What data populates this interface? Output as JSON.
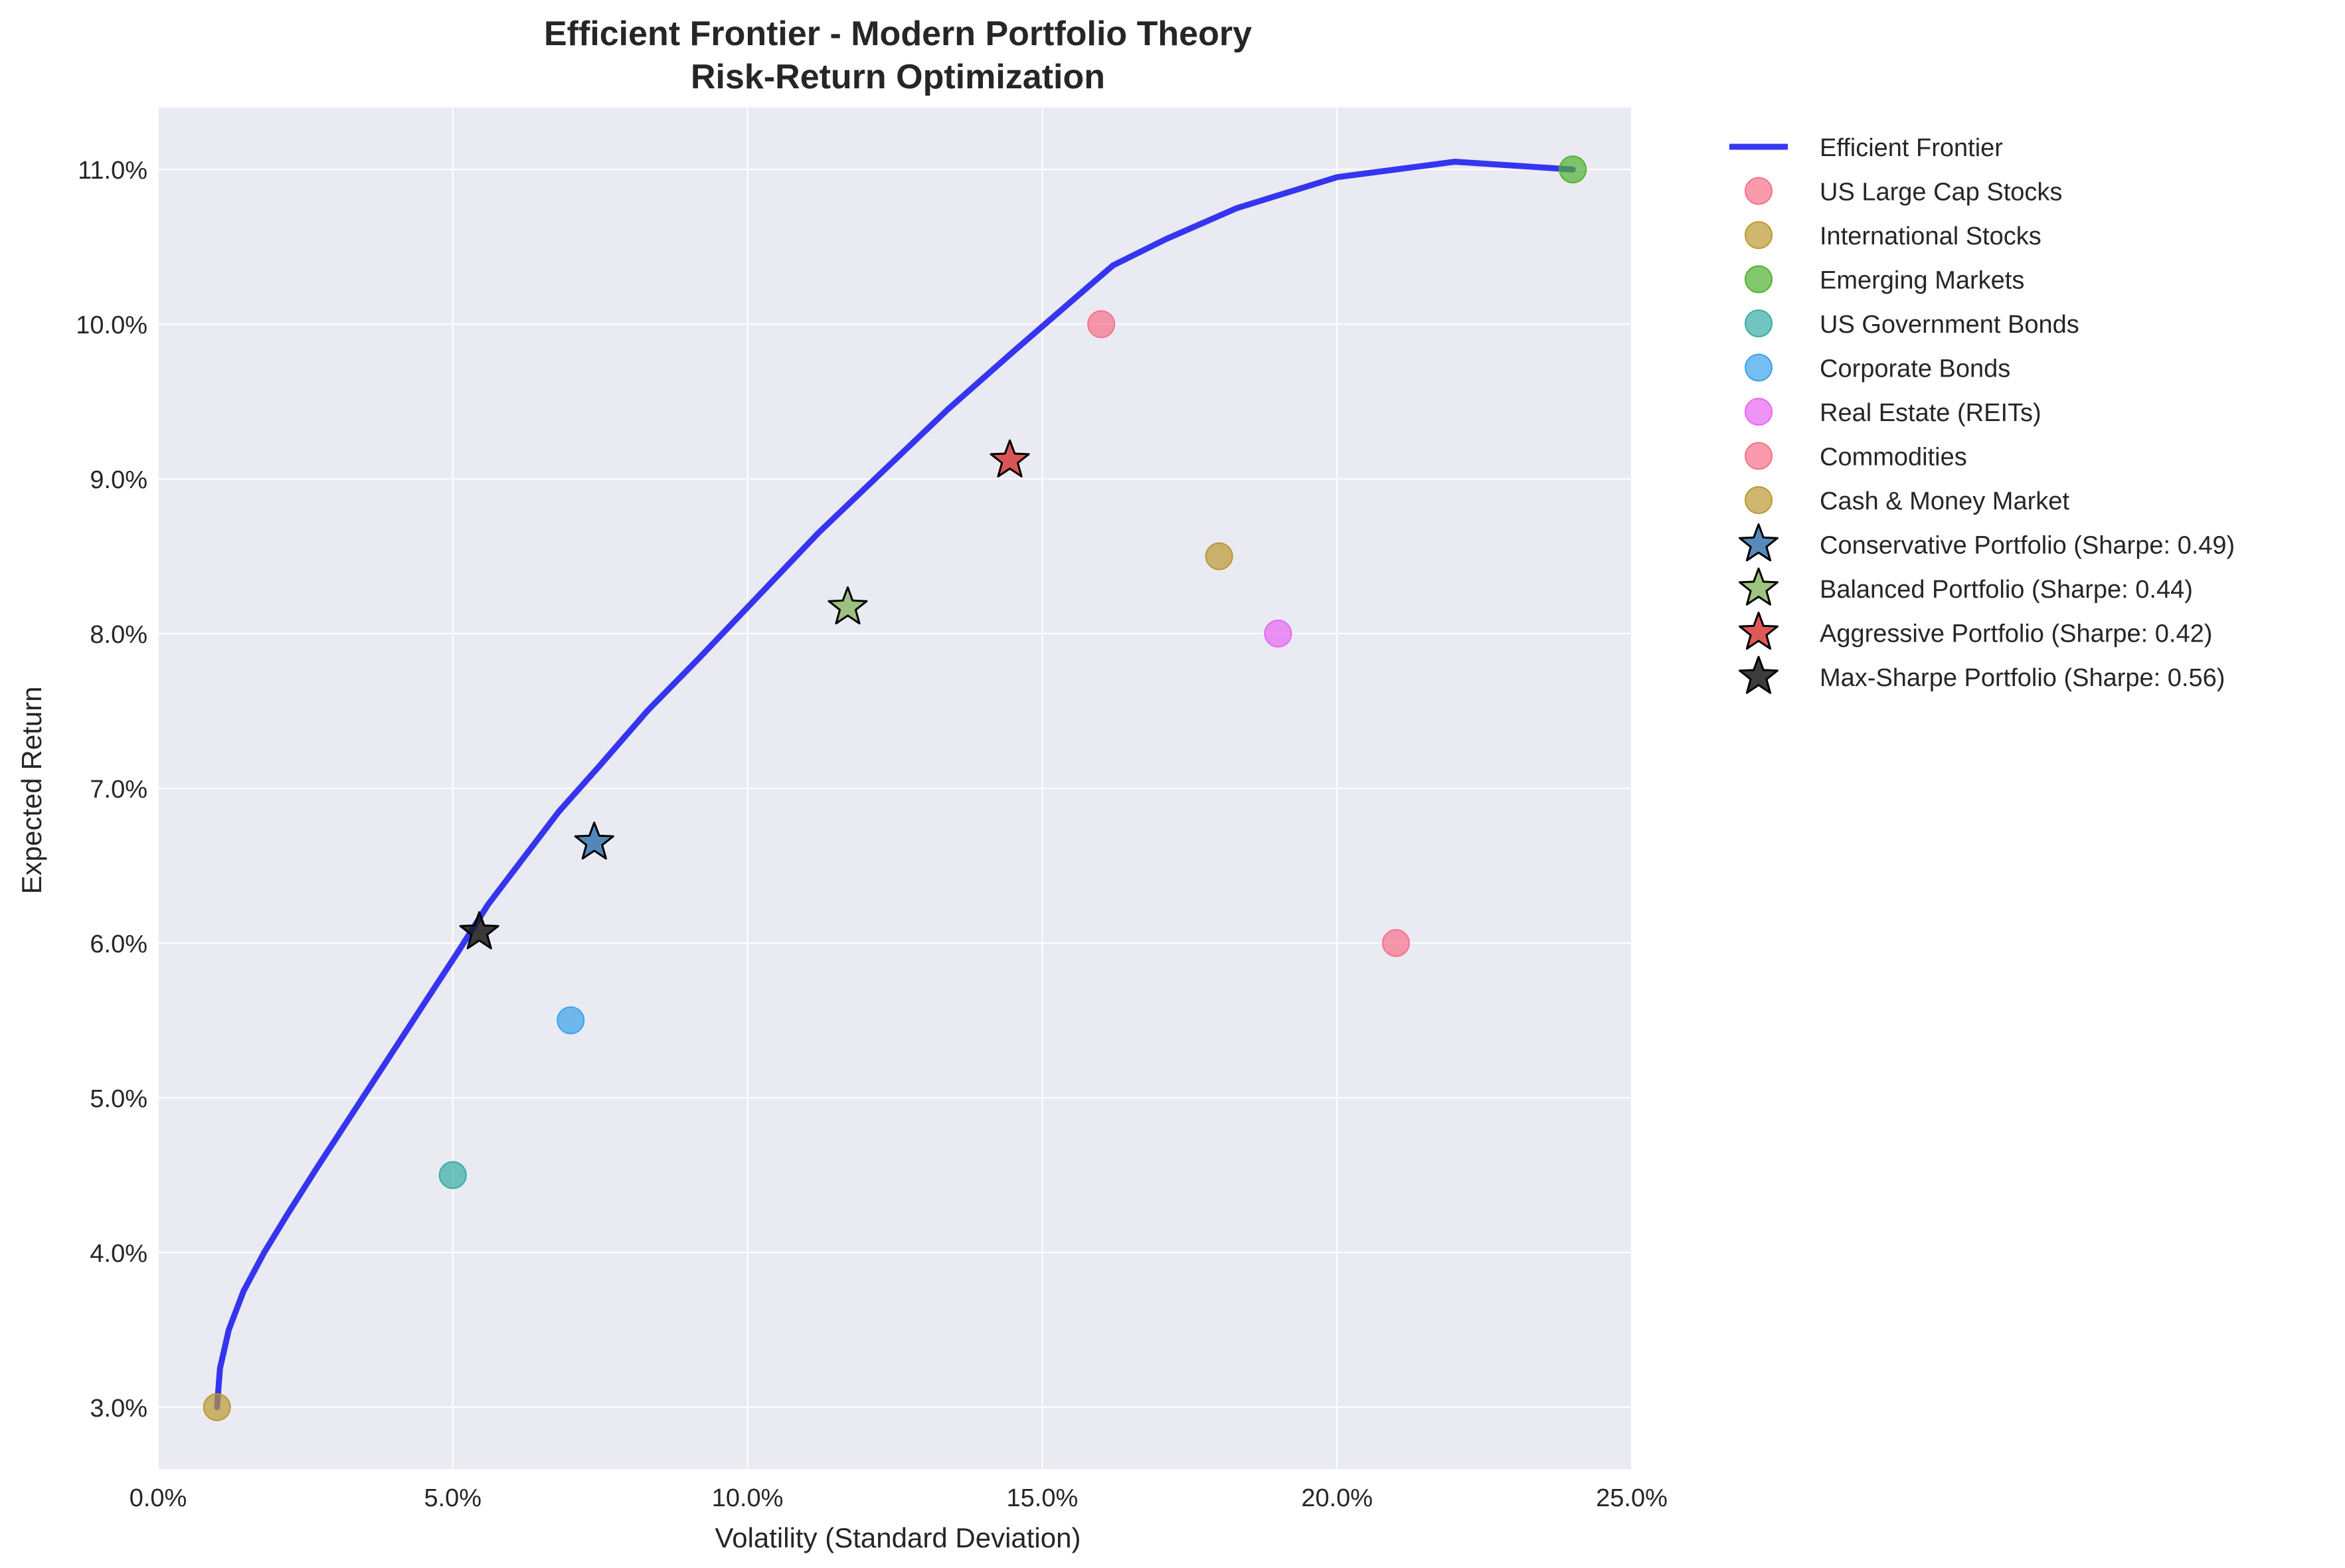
{
  "chart_data": {
    "type": "scatter",
    "title_line1": "Efficient Frontier - Modern Portfolio Theory",
    "title_line2": "Risk-Return Optimization",
    "xlabel": "Volatility (Standard Deviation)",
    "ylabel": "Expected Return",
    "xlim": [
      0.0,
      25.0
    ],
    "ylim": [
      2.6,
      11.4
    ],
    "xticks": [
      0,
      5,
      10,
      15,
      20,
      25
    ],
    "yticks": [
      3,
      4,
      5,
      6,
      7,
      8,
      9,
      10,
      11
    ],
    "xtick_labels": [
      "0.0%",
      "5.0%",
      "10.0%",
      "15.0%",
      "20.0%",
      "25.0%"
    ],
    "ytick_labels": [
      "3.0%",
      "4.0%",
      "5.0%",
      "6.0%",
      "7.0%",
      "8.0%",
      "9.0%",
      "10.0%",
      "11.0%"
    ],
    "grid": true,
    "legend_position": "outside-right",
    "frontier": {
      "name": "Efficient Frontier",
      "color": "#1515f0",
      "x": [
        1.0,
        1.05,
        1.2,
        1.45,
        1.8,
        2.2,
        2.7,
        3.3,
        3.9,
        4.5,
        5.1,
        5.6,
        6.2,
        6.8,
        7.5,
        8.3,
        9.2,
        10.2,
        11.2,
        12.3,
        13.4,
        14.5,
        15.5,
        16.2,
        17.1,
        18.3,
        20.0,
        22.0,
        24.0
      ],
      "y": [
        3.0,
        3.25,
        3.5,
        3.75,
        4.0,
        4.25,
        4.55,
        4.9,
        5.25,
        5.6,
        5.95,
        6.25,
        6.55,
        6.85,
        7.15,
        7.5,
        7.85,
        8.25,
        8.65,
        9.05,
        9.45,
        9.82,
        10.15,
        10.38,
        10.55,
        10.75,
        10.95,
        11.05,
        11.0
      ]
    },
    "assets": [
      {
        "name": "US Large Cap Stocks",
        "x": 16.0,
        "y": 10.0,
        "color": "#f77189"
      },
      {
        "name": "International Stocks",
        "x": 18.0,
        "y": 8.5,
        "color": "#bb9832"
      },
      {
        "name": "Emerging Markets",
        "x": 24.0,
        "y": 11.0,
        "color": "#50b131"
      },
      {
        "name": "US Government Bonds",
        "x": 5.0,
        "y": 4.5,
        "color": "#36ada4"
      },
      {
        "name": "Corporate Bonds",
        "x": 7.0,
        "y": 5.5,
        "color": "#3ba3ec"
      },
      {
        "name": "Real Estate (REITs)",
        "x": 19.0,
        "y": 8.0,
        "color": "#e866f4"
      },
      {
        "name": "Commodities",
        "x": 21.0,
        "y": 6.0,
        "color": "#f77189"
      },
      {
        "name": "Cash & Money Market",
        "x": 1.0,
        "y": 3.0,
        "color": "#bb9832"
      }
    ],
    "portfolios": [
      {
        "name": "Conservative Portfolio (Sharpe: 0.49)",
        "x": 7.4,
        "y": 6.65,
        "color": "#3a76af"
      },
      {
        "name": "Balanced Portfolio (Sharpe: 0.44)",
        "x": 11.7,
        "y": 8.17,
        "color": "#8eba6a"
      },
      {
        "name": "Aggressive Portfolio (Sharpe: 0.42)",
        "x": 14.45,
        "y": 9.12,
        "color": "#d83b3b"
      },
      {
        "name": "Max-Sharpe Portfolio (Sharpe: 0.56)",
        "x": 5.45,
        "y": 6.07,
        "color": "#1a1a1a"
      }
    ]
  }
}
